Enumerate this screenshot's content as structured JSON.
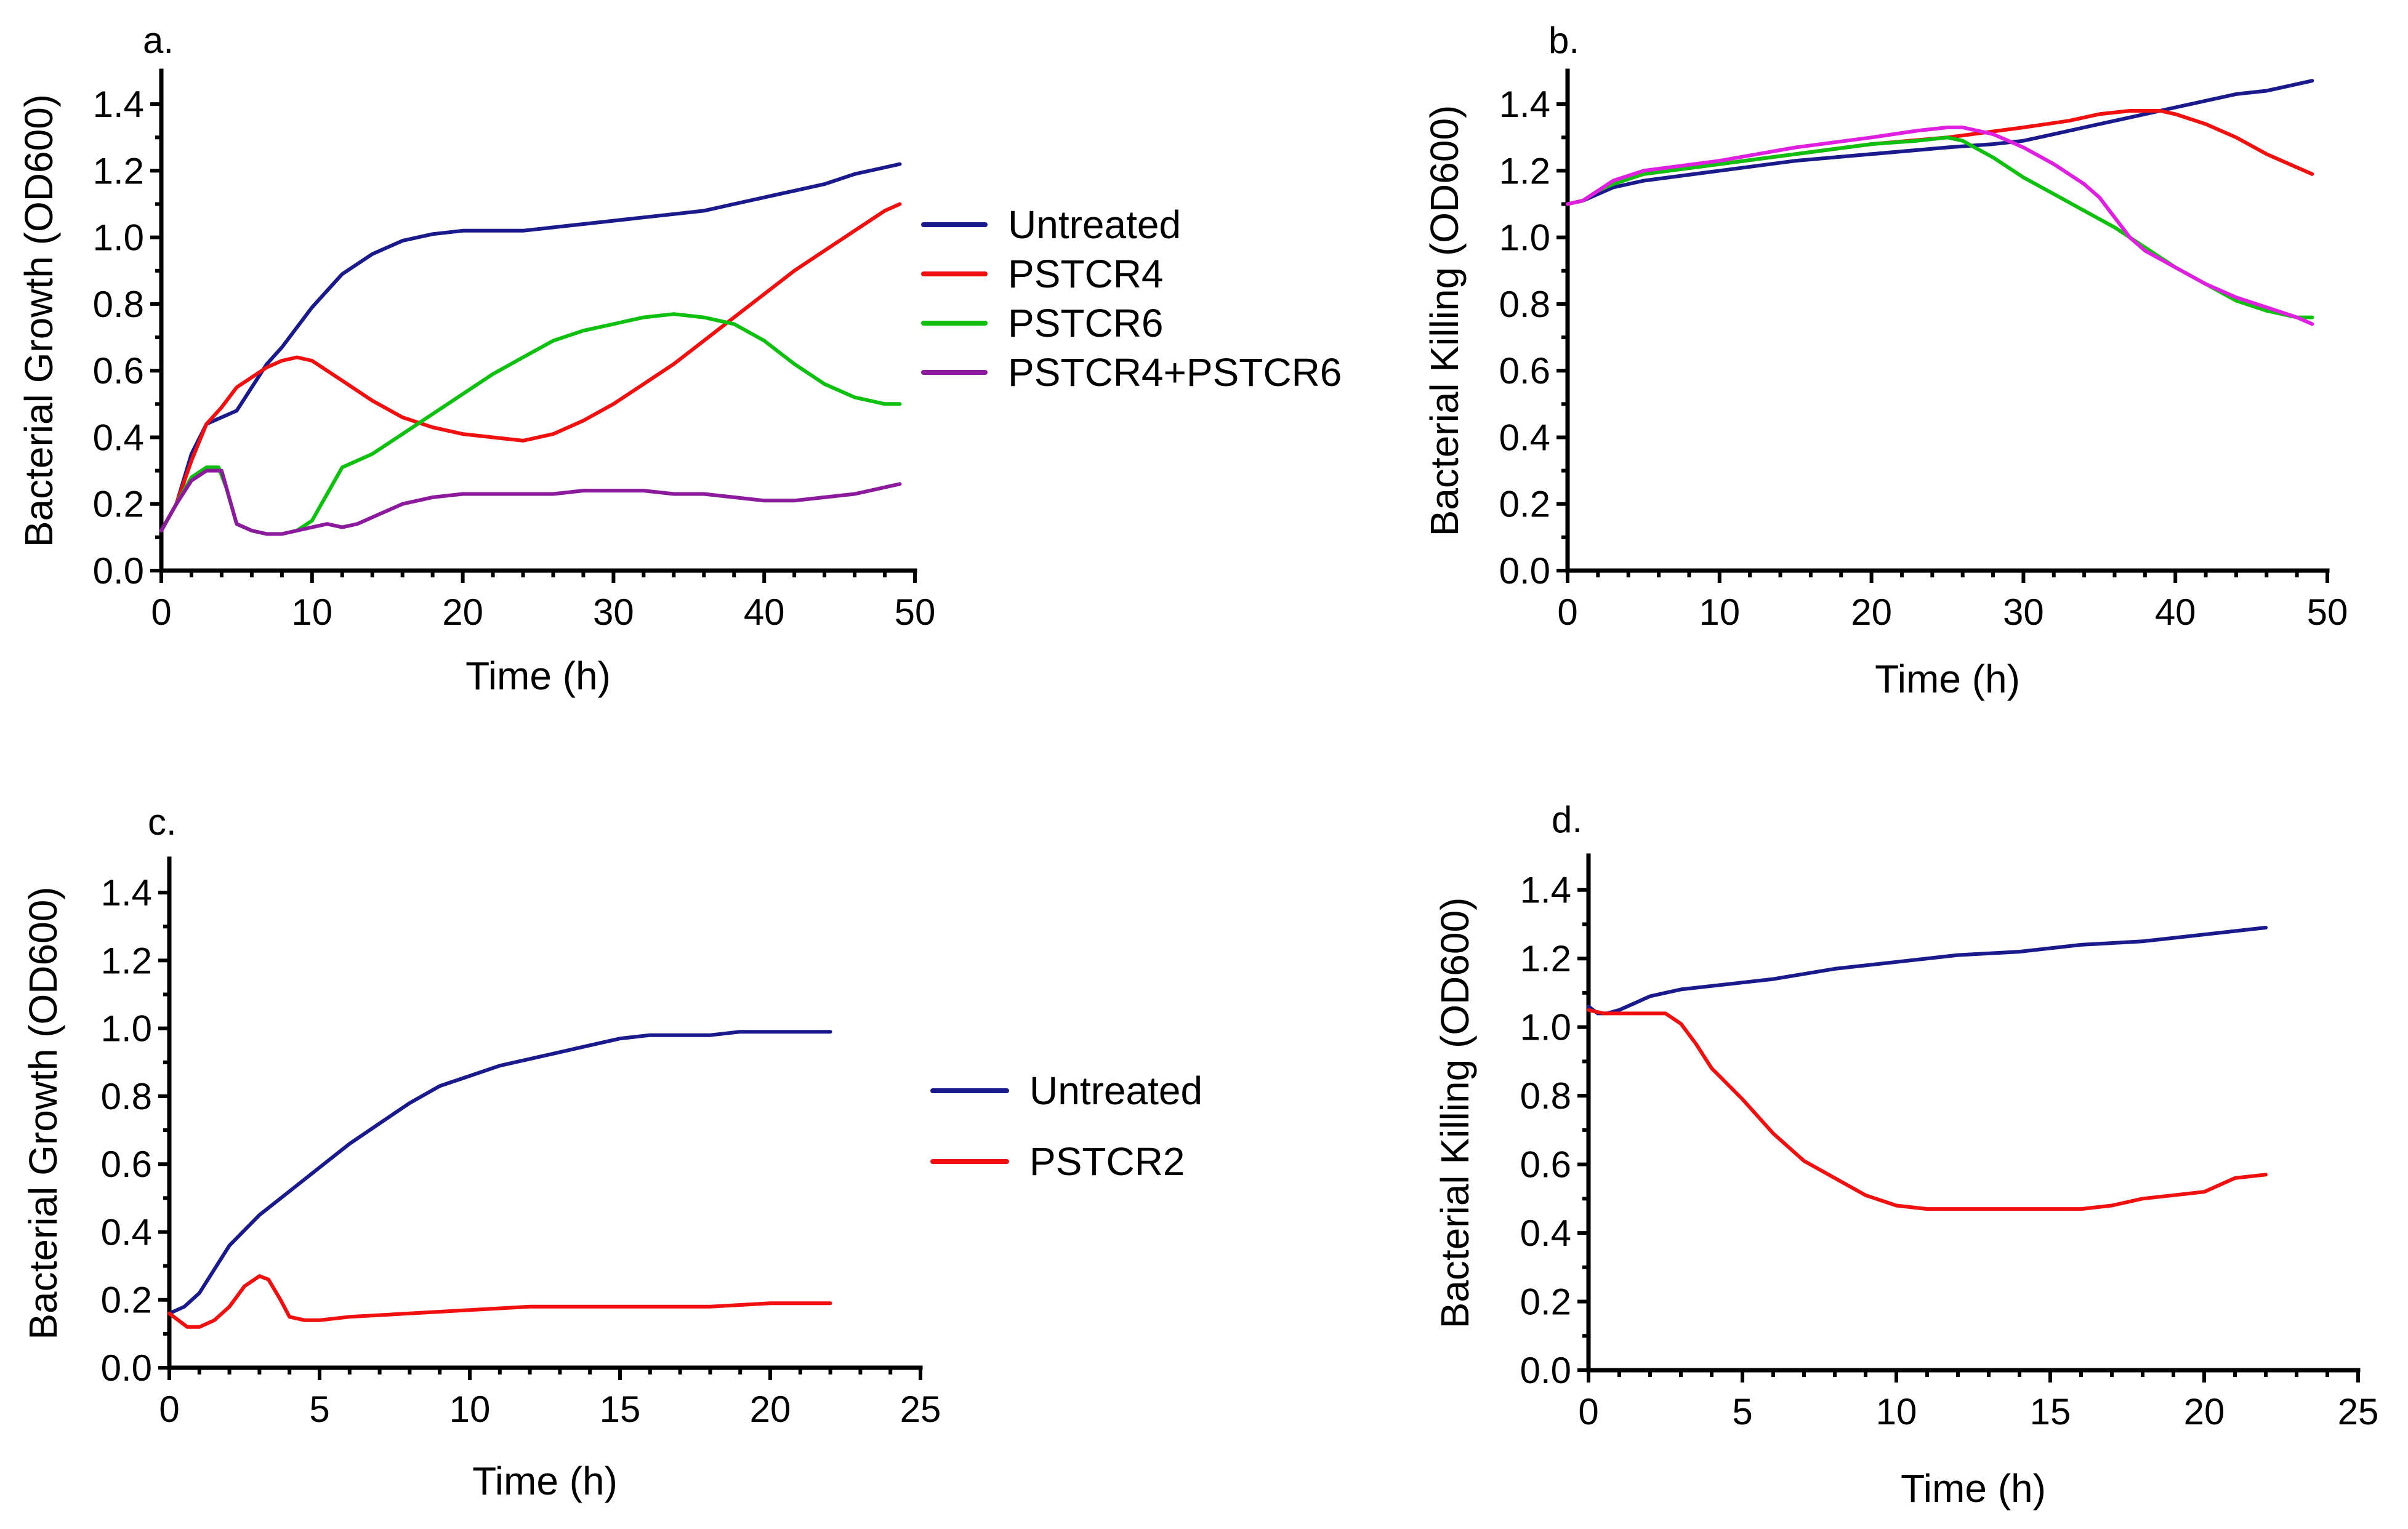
{
  "chart_data": [
    {
      "type": "line",
      "panel_label": "a.",
      "xlabel": "Time (h)",
      "ylabel": "Bacterial Growth (OD600)",
      "xlim": [
        0,
        50
      ],
      "ylim": [
        0,
        1.5
      ],
      "xticks": [
        0,
        10,
        20,
        30,
        40,
        50
      ],
      "yticks": [
        0.0,
        0.2,
        0.4,
        0.6,
        0.8,
        1.0,
        1.2,
        1.4
      ],
      "ytick_labels": [
        "0.0",
        "0.2",
        "0.4",
        "0.6",
        "0.8",
        "1.0",
        "1.2",
        "1.4"
      ],
      "legend_position": "right",
      "series": [
        {
          "name": "Untreated",
          "color": "#1a1a8c",
          "x": [
            0,
            1,
            2,
            3,
            4,
            5,
            6,
            7,
            8,
            10,
            12,
            14,
            16,
            18,
            20,
            22,
            24,
            26,
            28,
            30,
            32,
            34,
            36,
            38,
            40,
            42,
            44,
            46,
            48,
            49
          ],
          "y": [
            0.12,
            0.2,
            0.35,
            0.44,
            0.46,
            0.48,
            0.55,
            0.62,
            0.67,
            0.79,
            0.89,
            0.95,
            0.99,
            1.01,
            1.02,
            1.02,
            1.02,
            1.03,
            1.04,
            1.05,
            1.06,
            1.07,
            1.08,
            1.1,
            1.12,
            1.14,
            1.16,
            1.19,
            1.21,
            1.22
          ]
        },
        {
          "name": "PSTCR4",
          "color": "#f01010",
          "x": [
            0,
            1,
            2,
            3,
            4,
            5,
            6,
            7,
            8,
            9,
            10,
            12,
            14,
            16,
            18,
            20,
            22,
            24,
            26,
            28,
            30,
            32,
            34,
            36,
            38,
            40,
            42,
            44,
            46,
            48,
            49
          ],
          "y": [
            0.12,
            0.2,
            0.33,
            0.44,
            0.49,
            0.55,
            0.58,
            0.61,
            0.63,
            0.64,
            0.63,
            0.57,
            0.51,
            0.46,
            0.43,
            0.41,
            0.4,
            0.39,
            0.41,
            0.45,
            0.5,
            0.56,
            0.62,
            0.69,
            0.76,
            0.83,
            0.9,
            0.96,
            1.02,
            1.08,
            1.1
          ]
        },
        {
          "name": "PSTCR6",
          "color": "#10c010",
          "x": [
            0,
            1,
            2,
            3,
            3.8,
            4.3,
            5,
            6,
            7,
            8,
            9,
            10,
            11,
            12,
            14,
            16,
            18,
            20,
            22,
            24,
            26,
            28,
            30,
            32,
            34,
            36,
            38,
            40,
            42,
            44,
            46,
            48,
            49
          ],
          "y": [
            0.12,
            0.2,
            0.28,
            0.31,
            0.31,
            0.25,
            0.14,
            0.12,
            0.11,
            0.11,
            0.12,
            0.15,
            0.23,
            0.31,
            0.35,
            0.41,
            0.47,
            0.53,
            0.59,
            0.64,
            0.69,
            0.72,
            0.74,
            0.76,
            0.77,
            0.76,
            0.74,
            0.69,
            0.62,
            0.56,
            0.52,
            0.5,
            0.5
          ]
        },
        {
          "name": "PSTCR4+PSTCR6",
          "color": "#8c1a9c",
          "x": [
            0,
            1,
            2,
            3,
            4,
            5,
            6,
            7,
            8,
            9,
            10,
            11,
            12,
            13,
            14,
            16,
            18,
            20,
            22,
            24,
            26,
            28,
            30,
            32,
            34,
            36,
            38,
            40,
            42,
            44,
            46,
            48,
            49
          ],
          "y": [
            0.12,
            0.2,
            0.27,
            0.3,
            0.3,
            0.14,
            0.12,
            0.11,
            0.11,
            0.12,
            0.13,
            0.14,
            0.13,
            0.14,
            0.16,
            0.2,
            0.22,
            0.23,
            0.23,
            0.23,
            0.23,
            0.24,
            0.24,
            0.24,
            0.23,
            0.23,
            0.22,
            0.21,
            0.21,
            0.22,
            0.23,
            0.25,
            0.26
          ]
        }
      ]
    },
    {
      "type": "line",
      "panel_label": "b.",
      "xlabel": "Time (h)",
      "ylabel": "Bacterial Killing (OD600)",
      "xlim": [
        0,
        50
      ],
      "ylim": [
        0,
        1.5
      ],
      "xticks": [
        0,
        10,
        20,
        30,
        40,
        50
      ],
      "yticks": [
        0.0,
        0.2,
        0.4,
        0.6,
        0.8,
        1.0,
        1.2,
        1.4
      ],
      "ytick_labels": [
        "0.0",
        "0.2",
        "0.4",
        "0.6",
        "0.8",
        "1.0",
        "1.2",
        "1.4"
      ],
      "series": [
        {
          "name": "Untreated",
          "color": "#1a1a8c",
          "x": [
            0,
            1,
            2,
            3,
            5,
            10,
            15,
            20,
            25,
            28,
            30,
            32,
            34,
            36,
            38,
            40,
            42,
            44,
            46,
            48,
            49
          ],
          "y": [
            1.1,
            1.11,
            1.13,
            1.15,
            1.17,
            1.2,
            1.23,
            1.25,
            1.27,
            1.28,
            1.29,
            1.31,
            1.33,
            1.35,
            1.37,
            1.39,
            1.41,
            1.43,
            1.44,
            1.46,
            1.47
          ]
        },
        {
          "name": "PSTCR4",
          "color": "#f01010",
          "x": [
            0,
            1,
            2,
            3,
            5,
            10,
            15,
            20,
            25,
            30,
            33,
            35,
            37,
            38,
            39,
            40,
            42,
            44,
            46,
            48,
            49
          ],
          "y": [
            1.1,
            1.11,
            1.14,
            1.16,
            1.19,
            1.22,
            1.25,
            1.28,
            1.3,
            1.33,
            1.35,
            1.37,
            1.38,
            1.38,
            1.38,
            1.37,
            1.34,
            1.3,
            1.25,
            1.21,
            1.19
          ]
        },
        {
          "name": "PSTCR6",
          "color": "#10c010",
          "x": [
            0,
            1,
            2,
            3,
            5,
            10,
            15,
            20,
            23,
            25,
            26,
            28,
            30,
            32,
            34,
            36,
            38,
            40,
            42,
            44,
            46,
            48,
            49
          ],
          "y": [
            1.1,
            1.11,
            1.14,
            1.16,
            1.19,
            1.22,
            1.25,
            1.28,
            1.29,
            1.3,
            1.29,
            1.24,
            1.18,
            1.13,
            1.08,
            1.03,
            0.97,
            0.91,
            0.86,
            0.81,
            0.78,
            0.76,
            0.76
          ]
        },
        {
          "name": "PSTCR4+PSTCR6",
          "color": "#e020e0",
          "x": [
            0,
            1,
            2,
            3,
            5,
            10,
            15,
            20,
            23,
            25,
            26,
            28,
            30,
            32,
            34,
            35,
            36,
            37,
            38,
            40,
            42,
            44,
            46,
            48,
            49
          ],
          "y": [
            1.1,
            1.11,
            1.14,
            1.17,
            1.2,
            1.23,
            1.27,
            1.3,
            1.32,
            1.33,
            1.33,
            1.31,
            1.27,
            1.22,
            1.16,
            1.12,
            1.06,
            1.0,
            0.96,
            0.91,
            0.86,
            0.82,
            0.79,
            0.76,
            0.74
          ]
        }
      ]
    },
    {
      "type": "line",
      "panel_label": "c.",
      "xlabel": "Time (h)",
      "ylabel": "Bacterial Growth (OD600)",
      "xlim": [
        0,
        25
      ],
      "ylim": [
        0,
        1.5
      ],
      "xticks": [
        0,
        5,
        10,
        15,
        20,
        25
      ],
      "yticks": [
        0.0,
        0.2,
        0.4,
        0.6,
        0.8,
        1.0,
        1.2,
        1.4
      ],
      "ytick_labels": [
        "0.0",
        "0.2",
        "0.4",
        "0.6",
        "0.8",
        "1.0",
        "1.2",
        "1.4"
      ],
      "legend_position": "right",
      "series": [
        {
          "name": "Untreated",
          "color": "#1a1a8c",
          "x": [
            0,
            0.5,
            1,
            2,
            3,
            4,
            5,
            6,
            7,
            8,
            9,
            10,
            11,
            12,
            13,
            14,
            15,
            16,
            17,
            18,
            19,
            20,
            21,
            22
          ],
          "y": [
            0.16,
            0.18,
            0.22,
            0.36,
            0.45,
            0.52,
            0.59,
            0.66,
            0.72,
            0.78,
            0.83,
            0.86,
            0.89,
            0.91,
            0.93,
            0.95,
            0.97,
            0.98,
            0.98,
            0.98,
            0.99,
            0.99,
            0.99,
            0.99
          ]
        },
        {
          "name": " PSTCR2",
          "color": "#f01010",
          "x": [
            0,
            0.3,
            0.6,
            1,
            1.5,
            2,
            2.5,
            3,
            3.3,
            3.7,
            4,
            4.5,
            5,
            6,
            8,
            10,
            12,
            14,
            16,
            18,
            20,
            22
          ],
          "y": [
            0.16,
            0.14,
            0.12,
            0.12,
            0.14,
            0.18,
            0.24,
            0.27,
            0.26,
            0.2,
            0.15,
            0.14,
            0.14,
            0.15,
            0.16,
            0.17,
            0.18,
            0.18,
            0.18,
            0.18,
            0.19,
            0.19
          ]
        }
      ]
    },
    {
      "type": "line",
      "panel_label": "d.",
      "xlabel": "Time (h)",
      "ylabel": "Bacterial Killing (OD600)",
      "xlim": [
        0,
        25
      ],
      "ylim": [
        0,
        1.5
      ],
      "xticks": [
        0,
        5,
        10,
        15,
        20,
        25
      ],
      "yticks": [
        0.0,
        0.2,
        0.4,
        0.6,
        0.8,
        1.0,
        1.2,
        1.4
      ],
      "ytick_labels": [
        "0.0",
        "0.2",
        "0.4",
        "0.6",
        "0.8",
        "1.0",
        "1.2",
        "1.4"
      ],
      "series": [
        {
          "name": "Untreated",
          "color": "#1a1a8c",
          "x": [
            0,
            0.3,
            0.6,
            1,
            1.5,
            2,
            2.5,
            3,
            4,
            5,
            6,
            8,
            10,
            12,
            14,
            16,
            18,
            20,
            22
          ],
          "y": [
            1.06,
            1.04,
            1.04,
            1.05,
            1.07,
            1.09,
            1.1,
            1.11,
            1.12,
            1.13,
            1.14,
            1.17,
            1.19,
            1.21,
            1.22,
            1.24,
            1.25,
            1.27,
            1.29
          ]
        },
        {
          "name": "PSTCR2",
          "color": "#f01010",
          "x": [
            0,
            0.5,
            1,
            1.5,
            2,
            2.5,
            3,
            3.5,
            4,
            5,
            6,
            7,
            8,
            9,
            10,
            11,
            12,
            13,
            14,
            15,
            16,
            17,
            18,
            19,
            20,
            21,
            22
          ],
          "y": [
            1.05,
            1.04,
            1.04,
            1.04,
            1.04,
            1.04,
            1.01,
            0.95,
            0.88,
            0.79,
            0.69,
            0.61,
            0.56,
            0.51,
            0.48,
            0.47,
            0.47,
            0.47,
            0.47,
            0.47,
            0.47,
            0.48,
            0.5,
            0.51,
            0.52,
            0.56,
            0.57
          ]
        }
      ]
    }
  ]
}
